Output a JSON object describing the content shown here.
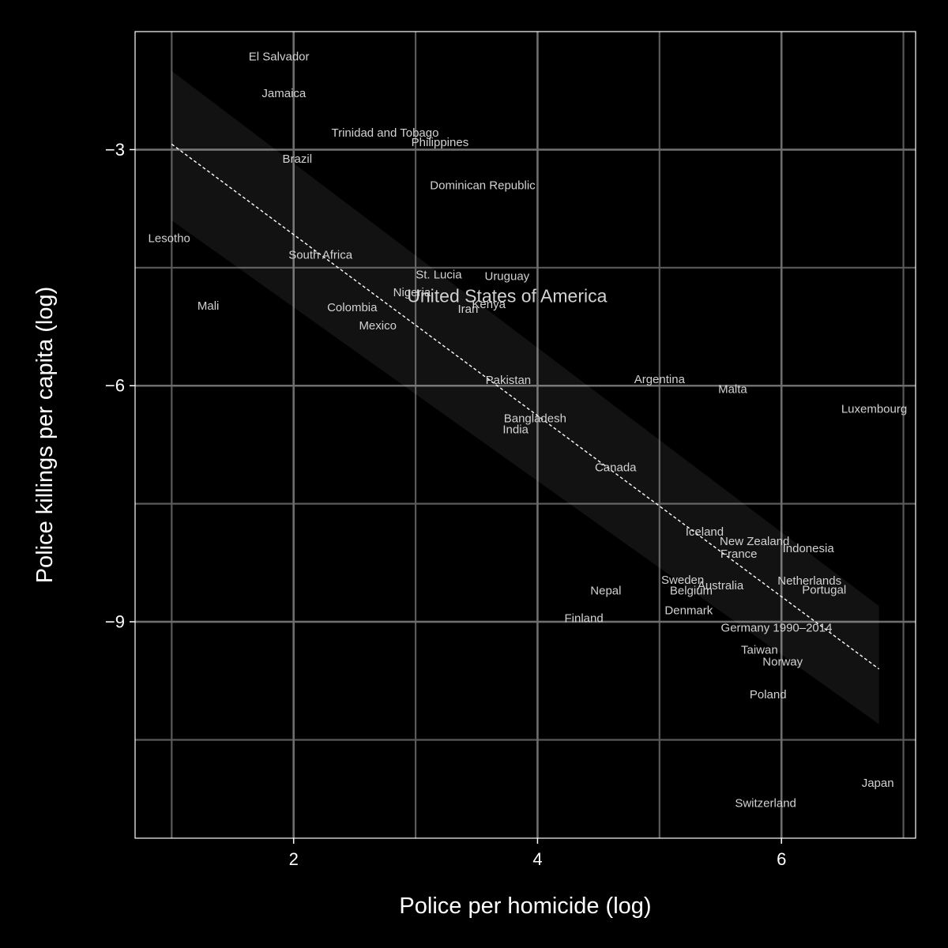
{
  "chart_data": {
    "type": "scatter",
    "title": "",
    "xlabel": "Police per homicide (log)",
    "ylabel": "Police killings per capita (log)",
    "xlim": [
      0.7,
      7.1
    ],
    "ylim": [
      -11.75,
      -1.5
    ],
    "x_ticks": [
      2,
      4,
      6
    ],
    "x_tick_labels": [
      "2",
      "4",
      "6"
    ],
    "y_ticks": [
      -3,
      -6,
      -9
    ],
    "y_tick_labels": [
      "−3",
      "−6",
      "−9"
    ],
    "grid_minor_x": [
      1,
      3,
      5,
      7
    ],
    "grid_minor_y": [
      -4.5,
      -7.5,
      -10.5
    ],
    "grid": true,
    "highlight_color": "#e0a050",
    "trend_line": {
      "x0": 1.0,
      "x1": 6.8,
      "y_at_x0": -2.93,
      "y_at_x1": -9.6,
      "style": "dashed"
    },
    "confidence_band": {
      "upper_at_x0": -2.0,
      "lower_at_x0": -3.9,
      "upper_at_x1": -8.8,
      "lower_at_x1": -10.3
    },
    "points": [
      {
        "label": "El Salvador",
        "x": 1.88,
        "y": -1.82
      },
      {
        "label": "Jamaica",
        "x": 1.92,
        "y": -2.29
      },
      {
        "label": "Trinidad and Tobago",
        "x": 2.75,
        "y": -2.79
      },
      {
        "label": "Philippines",
        "x": 3.2,
        "y": -2.91
      },
      {
        "label": "Brazil",
        "x": 2.03,
        "y": -3.12
      },
      {
        "label": "Dominican Republic",
        "x": 3.55,
        "y": -3.46
      },
      {
        "label": "Lesotho",
        "x": 0.98,
        "y": -4.13
      },
      {
        "label": "South Africa",
        "x": 2.22,
        "y": -4.34
      },
      {
        "label": "St. Lucia",
        "x": 3.19,
        "y": -4.59
      },
      {
        "label": "Uruguay",
        "x": 3.75,
        "y": -4.61
      },
      {
        "label": "Nigeria",
        "x": 2.97,
        "y": -4.82
      },
      {
        "label": "United States of America",
        "x": 3.75,
        "y": -4.86,
        "highlight": true
      },
      {
        "label": "Kenya",
        "x": 3.6,
        "y": -4.97
      },
      {
        "label": "Iran",
        "x": 3.43,
        "y": -5.03
      },
      {
        "label": "Mali",
        "x": 1.3,
        "y": -4.99
      },
      {
        "label": "Colombia",
        "x": 2.48,
        "y": -5.01
      },
      {
        "label": "Mexico",
        "x": 2.69,
        "y": -5.24
      },
      {
        "label": "Pakistan",
        "x": 3.76,
        "y": -5.93
      },
      {
        "label": "Argentina",
        "x": 5.0,
        "y": -5.92
      },
      {
        "label": "Malta",
        "x": 5.6,
        "y": -6.05
      },
      {
        "label": "Luxembourg",
        "x": 6.76,
        "y": -6.3
      },
      {
        "label": "Bangladesh",
        "x": 3.98,
        "y": -6.42
      },
      {
        "label": "India",
        "x": 3.82,
        "y": -6.56
      },
      {
        "label": "Canada",
        "x": 4.64,
        "y": -7.04
      },
      {
        "label": "Iceland",
        "x": 5.37,
        "y": -7.86
      },
      {
        "label": "New Zealand",
        "x": 5.78,
        "y": -7.98
      },
      {
        "label": "Indonesia",
        "x": 6.22,
        "y": -8.07
      },
      {
        "label": "France",
        "x": 5.65,
        "y": -8.14
      },
      {
        "label": "Sweden",
        "x": 5.19,
        "y": -8.47
      },
      {
        "label": "Netherlands",
        "x": 6.23,
        "y": -8.48
      },
      {
        "label": "Australia",
        "x": 5.5,
        "y": -8.54
      },
      {
        "label": "Belgium",
        "x": 5.26,
        "y": -8.61
      },
      {
        "label": "Portugal",
        "x": 6.35,
        "y": -8.6
      },
      {
        "label": "Nepal",
        "x": 4.56,
        "y": -8.61
      },
      {
        "label": "Denmark",
        "x": 5.24,
        "y": -8.86
      },
      {
        "label": "Finland",
        "x": 4.38,
        "y": -8.96
      },
      {
        "label": "Germany 1990–2014",
        "x": 5.96,
        "y": -9.08
      },
      {
        "label": "Taiwan",
        "x": 5.82,
        "y": -9.36
      },
      {
        "label": "Norway",
        "x": 6.01,
        "y": -9.51
      },
      {
        "label": "Poland",
        "x": 5.89,
        "y": -9.93
      },
      {
        "label": "Japan",
        "x": 6.79,
        "y": -11.05
      },
      {
        "label": "Switzerland",
        "x": 5.87,
        "y": -11.31
      }
    ]
  }
}
